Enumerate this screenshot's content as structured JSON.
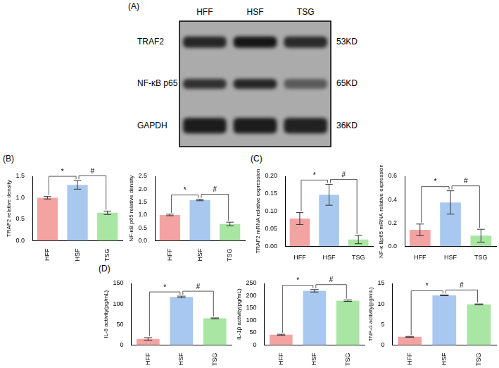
{
  "panel_labels": [
    "(A)",
    "(B)",
    "(C)",
    "(D)"
  ],
  "blot": {
    "lanes": [
      "HFF",
      "HSF",
      "TSG"
    ],
    "rows": [
      {
        "name": "TRAF2",
        "size": "53KD"
      },
      {
        "name": "NF-κB p65",
        "size": "65KD"
      },
      {
        "name": "GAPDH",
        "size": "36KD"
      }
    ]
  },
  "chart_data": [
    {
      "type": "bar",
      "y_label": "TRAF2 relative density",
      "categories": [
        "HFF",
        "HSF",
        "TSG"
      ],
      "values": [
        1.0,
        1.3,
        0.65
      ],
      "errors": [
        0.03,
        0.1,
        0.04
      ],
      "colors": [
        "#f4a3a3",
        "#a9c8f0",
        "#a9e5a3"
      ],
      "ylim": [
        0,
        1.5
      ],
      "yticks": [
        {
          "value": 0,
          "label": "0.0"
        },
        0.5,
        {
          "value": 1,
          "label": "1.0"
        },
        1.5
      ],
      "grid": false,
      "annotations": [
        {
          "between": [
            "HFF",
            "HSF"
          ],
          "label": "*"
        },
        {
          "between": [
            "HSF",
            "TSG"
          ],
          "label": "#"
        }
      ]
    },
    {
      "type": "bar",
      "y_label": "NF-κB p65 relative density",
      "categories": [
        "HFF",
        "HSF",
        "TSG"
      ],
      "values": [
        1.0,
        1.58,
        0.65
      ],
      "errors": [
        0.03,
        0.03,
        0.07
      ],
      "colors": [
        "#f4a3a3",
        "#a9c8f0",
        "#a9e5a3"
      ],
      "ylim": [
        0,
        2.5
      ],
      "yticks": [
        {
          "value": 0,
          "label": "0.0"
        },
        0.5,
        {
          "value": 1,
          "label": "1.0"
        },
        1.5,
        {
          "value": 2,
          "label": "2.0"
        },
        2.5
      ],
      "grid": false,
      "annotations": [
        {
          "between": [
            "HFF",
            "HSF"
          ],
          "label": "*"
        },
        {
          "between": [
            "HSF",
            "TSG"
          ],
          "label": "#"
        }
      ]
    },
    {
      "type": "bar",
      "y_label": "TRAF2 mRNA relative expression",
      "categories": [
        "HFF",
        "HSF",
        "TSG"
      ],
      "values": [
        0.079,
        0.147,
        0.019
      ],
      "errors": [
        0.017,
        0.03,
        0.012
      ],
      "colors": [
        "#f4a3a3",
        "#a9c8f0",
        "#a9e5a3"
      ],
      "ylim": [
        0,
        0.2
      ],
      "yticks": [
        {
          "value": 0,
          "label": "0.00"
        },
        0.05,
        {
          "value": 0.1,
          "label": "0.10"
        },
        0.15,
        {
          "value": 0.2,
          "label": "0.20"
        }
      ],
      "grid": false,
      "annotations": [
        {
          "between": [
            "HFF",
            "HSF"
          ],
          "label": "*"
        },
        {
          "between": [
            "HSF",
            "TSG"
          ],
          "label": "#"
        }
      ]
    },
    {
      "type": "bar",
      "y_label": "NF-κ Bp65 mRNA relative expression",
      "categories": [
        "HFF",
        "HSF",
        "TSG"
      ],
      "values": [
        0.14,
        0.375,
        0.09
      ],
      "errors": [
        0.05,
        0.1,
        0.055
      ],
      "colors": [
        "#f4a3a3",
        "#a9c8f0",
        "#a9e5a3"
      ],
      "ylim": [
        0,
        0.6
      ],
      "yticks": [
        {
          "value": 0,
          "label": "0.0"
        },
        0.2,
        0.4,
        0.6
      ],
      "grid": false,
      "annotations": [
        {
          "between": [
            "HFF",
            "HSF"
          ],
          "label": "*"
        },
        {
          "between": [
            "HSF",
            "TSG"
          ],
          "label": "#"
        }
      ]
    },
    {
      "type": "bar",
      "y_label": "IL-6 activity(pg/mL)",
      "categories": [
        "HFF",
        "HSF",
        "TSG"
      ],
      "values": [
        15,
        117,
        65
      ],
      "errors": [
        3,
        2,
        1
      ],
      "colors": [
        "#f4a3a3",
        "#a9c8f0",
        "#a9e5a3"
      ],
      "ylim": [
        0,
        150
      ],
      "yticks": [
        0,
        50,
        100,
        150
      ],
      "grid": false,
      "annotations": [
        {
          "between": [
            "HFF",
            "HSF"
          ],
          "label": "*"
        },
        {
          "between": [
            "HSF",
            "TSG"
          ],
          "label": "#"
        }
      ]
    },
    {
      "type": "bar",
      "y_label": "IL-1β activity(pg/mL)",
      "categories": [
        "HFF",
        "HSF",
        "TSG"
      ],
      "values": [
        42,
        220,
        180
      ],
      "errors": [
        2,
        5,
        3
      ],
      "colors": [
        "#f4a3a3",
        "#a9c8f0",
        "#a9e5a3"
      ],
      "ylim": [
        0,
        250
      ],
      "yticks": [
        0,
        50,
        100,
        150,
        200,
        250
      ],
      "grid": false,
      "annotations": [
        {
          "between": [
            "HFF",
            "HSF"
          ],
          "label": "*"
        },
        {
          "between": [
            "HSF",
            "TSG"
          ],
          "label": "#"
        }
      ]
    },
    {
      "type": "bar",
      "y_label": "TNF-α activity(pg/mL)",
      "categories": [
        "HFF",
        "HSF",
        "TSG"
      ],
      "values": [
        2,
        12.1,
        9.9
      ],
      "errors": [
        0.1,
        0.1,
        0.1
      ],
      "colors": [
        "#f4a3a3",
        "#a9c8f0",
        "#a9e5a3"
      ],
      "ylim": [
        0,
        15
      ],
      "yticks": [
        0,
        5,
        10,
        15
      ],
      "grid": false,
      "annotations": [
        {
          "between": [
            "HFF",
            "HSF"
          ],
          "label": "*"
        },
        {
          "between": [
            "HSF",
            "TSG"
          ],
          "label": "#"
        }
      ]
    }
  ]
}
